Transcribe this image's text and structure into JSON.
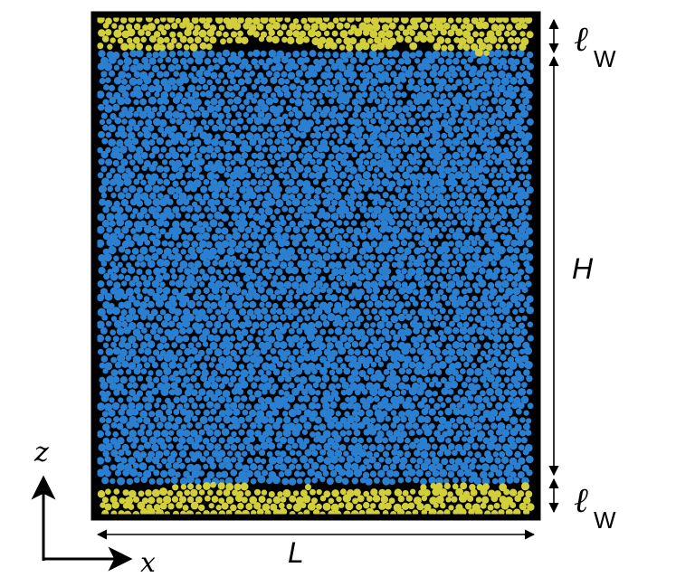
{
  "labels": {
    "wall_thickness_symbol": "ℓ",
    "wall_thickness_subscript": "W",
    "height": "H",
    "length": "L",
    "axis_z": "z",
    "axis_x": "x"
  },
  "colors": {
    "background": "#000000",
    "bulk_particles": "#2a7fd0",
    "wall_particles": "#d2cf3a",
    "frame": "#000000",
    "annotation": "#000000"
  }
}
